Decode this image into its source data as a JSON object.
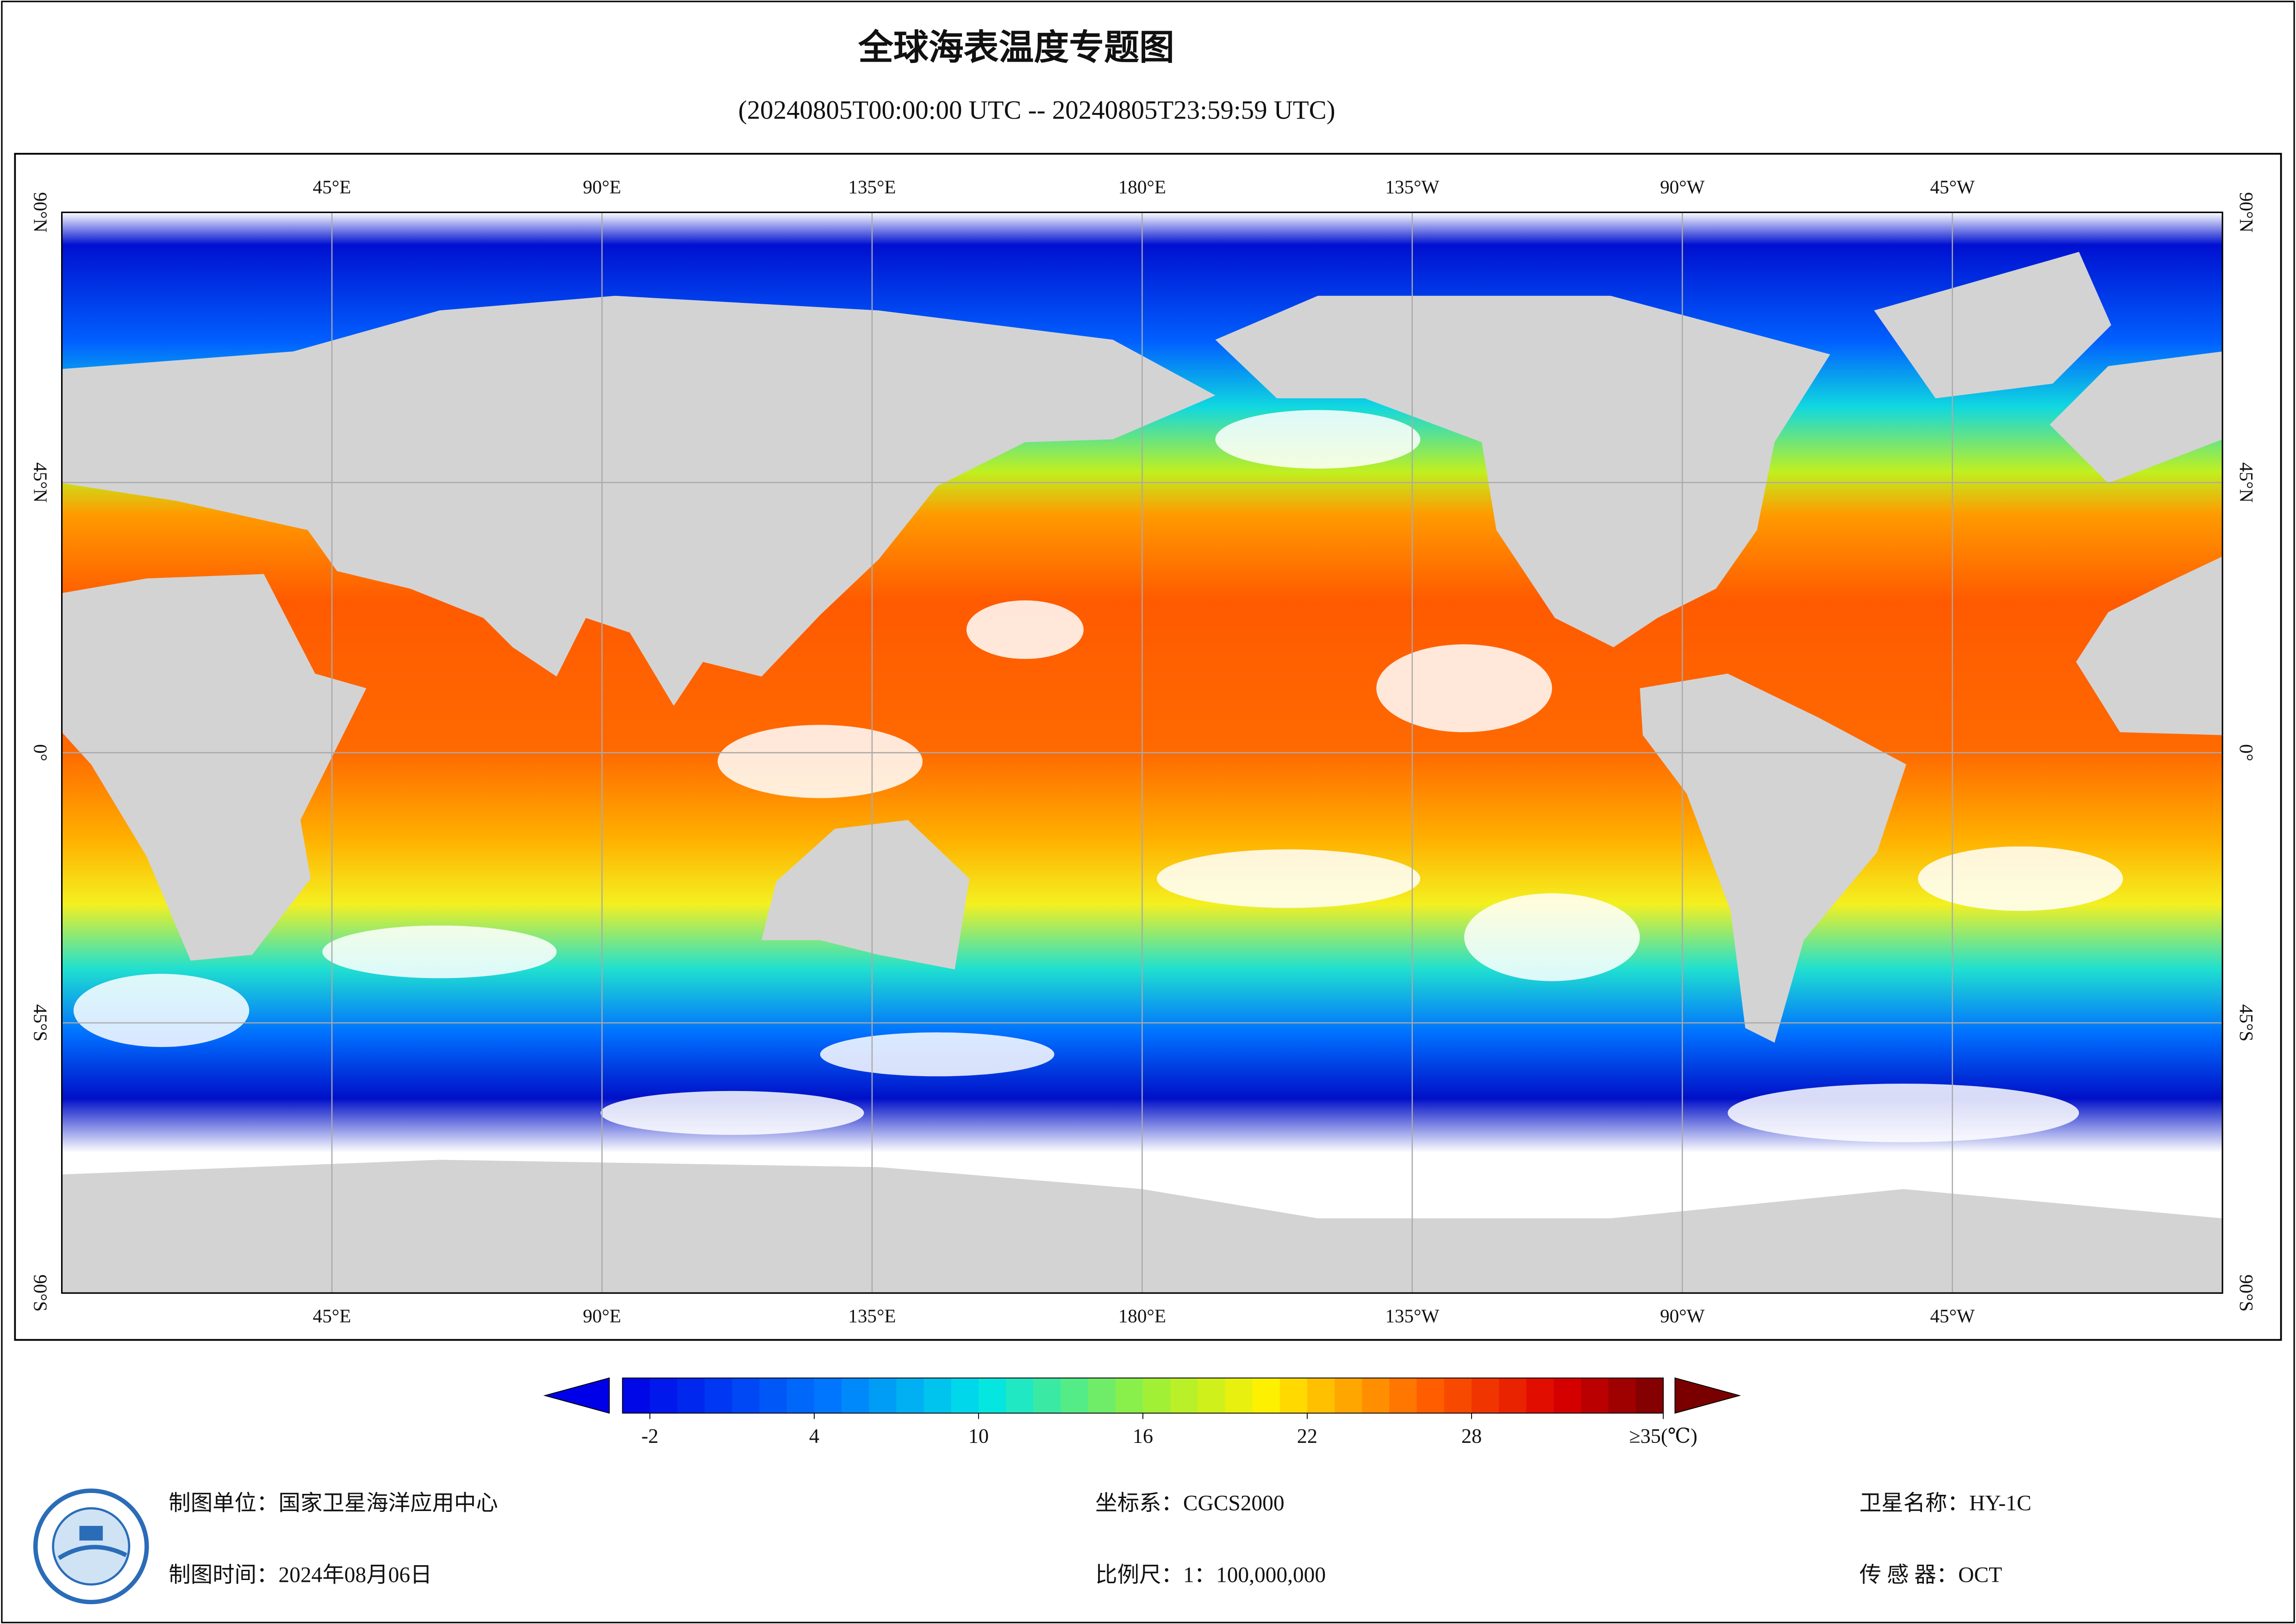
{
  "header": {
    "title": "全球海表温度专题图",
    "subtitle": "(20240805T00:00:00 UTC -- 20240805T23:59:59 UTC)"
  },
  "map": {
    "lon_ticks": [
      {
        "value": 45,
        "label": "45°E"
      },
      {
        "value": 90,
        "label": "90°E"
      },
      {
        "value": 135,
        "label": "135°E"
      },
      {
        "value": 180,
        "label": "180°E"
      },
      {
        "value": 225,
        "label": "135°W"
      },
      {
        "value": 270,
        "label": "90°W"
      },
      {
        "value": 315,
        "label": "45°W"
      }
    ],
    "lat_ticks": [
      {
        "value": 90,
        "label": "90°N"
      },
      {
        "value": 45,
        "label": "45°N"
      },
      {
        "value": 0,
        "label": "0°"
      },
      {
        "value": -45,
        "label": "45°S"
      },
      {
        "value": -90,
        "label": "90°S"
      }
    ]
  },
  "colorbar": {
    "clim": [
      -3,
      35
    ],
    "ticks": [
      -2,
      4,
      10,
      16,
      22,
      28,
      {
        "value": 35,
        "label": "≥35(℃)"
      }
    ]
  },
  "footer": {
    "unit": "制图单位：国家卫星海洋应用中心",
    "time": "制图时间：2024年08月06日",
    "crs": "坐标系：CGCS2000",
    "scale": "比例尺：1：100,000,000",
    "satellite": "卫星名称：HY-1C",
    "sensor": "传 感 器：OCT"
  }
}
